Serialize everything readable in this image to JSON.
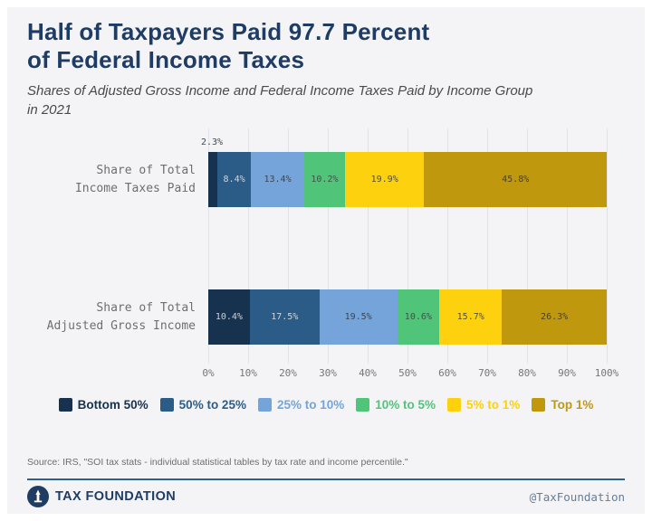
{
  "page": {
    "title": "Half of Taxpayers Paid 97.7 Percent\nof Federal Income Taxes",
    "subtitle": "Shares of Adjusted Gross Income and Federal Income Taxes Paid by Income Group\nin 2021",
    "source": "Source: IRS, \"SOI tax stats - individual statistical tables by tax rate and income percentile.\"",
    "brand": "TAX FOUNDATION",
    "handle": "@TaxFoundation"
  },
  "colors": {
    "background": "#f4f4f6",
    "title_navy": "#1e3c64",
    "rule_blue": "#2d6394",
    "gridline": "#e3e3e7"
  },
  "chart_data": {
    "type": "bar",
    "orientation": "horizontal-stacked",
    "title": "Half of Taxpayers Paid 97.7 Percent of Federal Income Taxes",
    "subtitle": "Shares of Adjusted Gross Income and Federal Income Taxes Paid by Income Group in 2021",
    "categories": [
      "Share of Total\nIncome Taxes Paid",
      "Share of Total\nAdjusted Gross Income"
    ],
    "series": [
      {
        "name": "Bottom 50%",
        "color": "#17324e",
        "label_color": "#c9d2db",
        "values": [
          2.3,
          10.4
        ]
      },
      {
        "name": "50% to 25%",
        "color": "#2b5c88",
        "label_color": "#ccd5de",
        "values": [
          8.4,
          17.5
        ]
      },
      {
        "name": "25% to 10%",
        "color": "#74a4d9",
        "label_color": "#3c4654",
        "values": [
          13.4,
          19.5
        ]
      },
      {
        "name": "10% to 5%",
        "color": "#50c579",
        "label_color": "#3c5446",
        "values": [
          10.2,
          10.6
        ]
      },
      {
        "name": "5% to 1%",
        "color": "#fed10f",
        "label_color": "#55512f",
        "values": [
          19.9,
          15.7
        ]
      },
      {
        "name": "Top 1%",
        "color": "#c0980e",
        "label_color": "#4d431c",
        "values": [
          45.8,
          26.3
        ]
      }
    ],
    "x_ticks": [
      "0%",
      "10%",
      "20%",
      "30%",
      "40%",
      "50%",
      "60%",
      "70%",
      "80%",
      "90%",
      "100%"
    ],
    "xlim": [
      0,
      100
    ],
    "grid": true,
    "legend_position": "bottom",
    "value_suffix": "%",
    "outside_label_threshold_pct": 4
  }
}
